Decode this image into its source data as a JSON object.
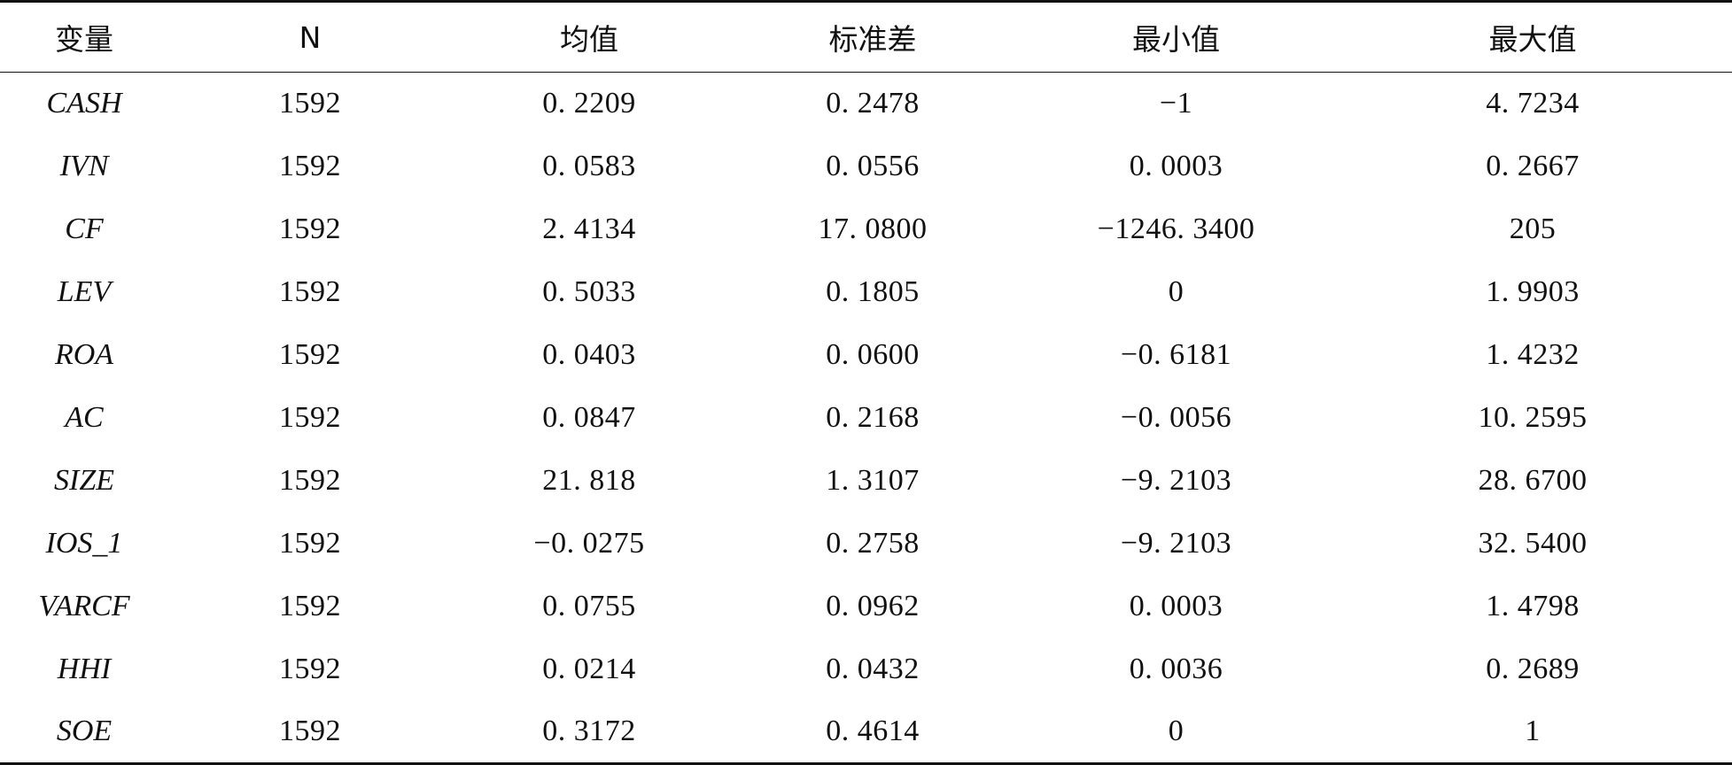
{
  "table": {
    "headers": [
      "变量",
      "N",
      "均值",
      "标准差",
      "最小值",
      "最大值"
    ],
    "rows": [
      [
        "CASH",
        "1592",
        "0. 2209",
        "0. 2478",
        "−1",
        "4. 7234"
      ],
      [
        "IVN",
        "1592",
        "0. 0583",
        "0. 0556",
        "0. 0003",
        "0. 2667"
      ],
      [
        "CF",
        "1592",
        "2. 4134",
        "17. 0800",
        "−1246. 3400",
        "205"
      ],
      [
        "LEV",
        "1592",
        "0. 5033",
        "0. 1805",
        "0",
        "1. 9903"
      ],
      [
        "ROA",
        "1592",
        "0. 0403",
        "0. 0600",
        "−0. 6181",
        "1. 4232"
      ],
      [
        "AC",
        "1592",
        "0. 0847",
        "0. 2168",
        "−0. 0056",
        "10. 2595"
      ],
      [
        "SIZE",
        "1592",
        "21. 818",
        "1. 3107",
        "−9. 2103",
        "28. 6700"
      ],
      [
        "IOS_1",
        "1592",
        "−0. 0275",
        "0. 2758",
        "−9. 2103",
        "32. 5400"
      ],
      [
        "VARCF",
        "1592",
        "0. 0755",
        "0. 0962",
        "0. 0003",
        "1. 4798"
      ],
      [
        "HHI",
        "1592",
        "0. 0214",
        "0. 0432",
        "0. 0036",
        "0. 2689"
      ],
      [
        "SOE",
        "1592",
        "0. 3172",
        "0. 4614",
        "0",
        "1"
      ]
    ]
  }
}
